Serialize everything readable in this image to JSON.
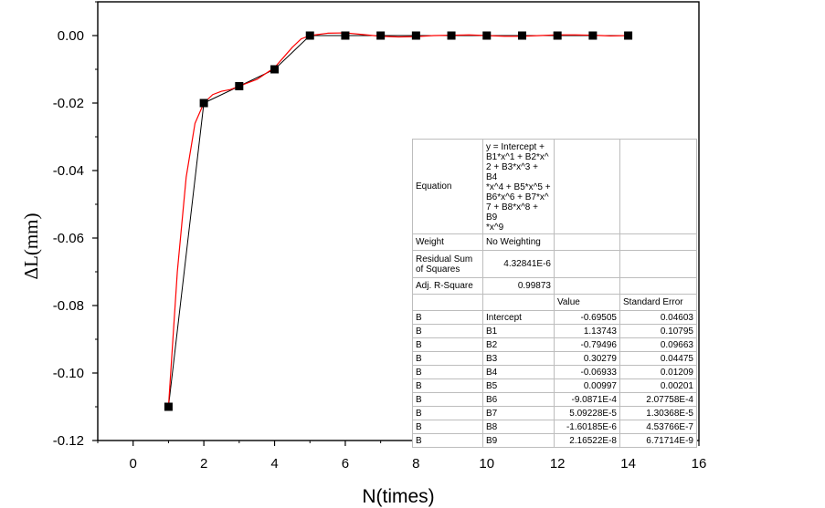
{
  "chart_data": {
    "type": "line",
    "title": "",
    "xlabel": "N(times)",
    "ylabel": "ΔL(mm)",
    "xlim": [
      -1,
      16
    ],
    "ylim": [
      -0.12,
      0.01
    ],
    "x_ticks": [
      0,
      2,
      4,
      6,
      8,
      10,
      12,
      14,
      16
    ],
    "y_ticks": [
      0.0,
      -0.02,
      -0.04,
      -0.06,
      -0.08,
      -0.1,
      -0.12
    ],
    "x_tick_labels": [
      "0",
      "2",
      "4",
      "6",
      "8",
      "10",
      "12",
      "14",
      "16"
    ],
    "y_tick_labels": [
      "0.00",
      "-0.02",
      "-0.04",
      "-0.06",
      "-0.08",
      "-0.10",
      "-0.12"
    ],
    "series": [
      {
        "marker": "square",
        "color": "#000000",
        "x": [
          1,
          2,
          3,
          4,
          5,
          6,
          7,
          8,
          9,
          10,
          11,
          12,
          13,
          14
        ],
        "y": [
          -0.11,
          -0.02,
          -0.015,
          -0.01,
          0.0,
          0.0,
          0.0,
          0.0,
          0.0,
          0.0,
          0.0,
          0.0,
          0.0,
          0.0
        ]
      },
      {
        "color": "#ff0000",
        "x": [
          1.0,
          1.25,
          1.5,
          1.75,
          2.0,
          2.25,
          2.5,
          2.75,
          3.0,
          3.5,
          4.0,
          4.25,
          4.5,
          4.75,
          5.0,
          5.5,
          6.0,
          6.5,
          7.0,
          7.5,
          8.0,
          8.5,
          9.0,
          9.5,
          10.0,
          10.5,
          11.0,
          11.5,
          12.0,
          12.5,
          13.0,
          13.5,
          14.0
        ],
        "y": [
          -0.11,
          -0.07,
          -0.042,
          -0.026,
          -0.02,
          -0.0175,
          -0.0165,
          -0.016,
          -0.015,
          -0.013,
          -0.0095,
          -0.0065,
          -0.0035,
          -0.001,
          0.0,
          0.0007,
          0.0008,
          0.0003,
          -0.0002,
          -0.0004,
          -0.0003,
          0.0,
          0.0001,
          0.0002,
          0.0,
          -0.0002,
          -0.0002,
          0.0,
          0.0002,
          0.0002,
          0.0001,
          -0.0001,
          0.0
        ]
      }
    ],
    "fit_table": {
      "equation_label": "Equation",
      "equation_lines": [
        "y = Intercept +",
        "B1*x^1 + B2*x^",
        "2 + B3*x^3 + B4",
        "*x^4 + B5*x^5 +",
        " B6*x^6 + B7*x^",
        "7 + B8*x^8 + B9",
        "*x^9"
      ],
      "weight_label": "Weight",
      "weight_value": "No Weighting",
      "rss_label_lines": [
        "Residual Sum",
        "of Squares"
      ],
      "rss_value": "4.32841E-6",
      "adjr2_label": "Adj. R-Square",
      "adjr2_value": "0.99873",
      "value_header": "Value",
      "stderr_header": "Standard Error",
      "params": [
        {
          "group": "B",
          "name": "Intercept",
          "value": "-0.69505",
          "stderr": "0.04603"
        },
        {
          "group": "B",
          "name": "B1",
          "value": "1.13743",
          "stderr": "0.10795"
        },
        {
          "group": "B",
          "name": "B2",
          "value": "-0.79496",
          "stderr": "0.09663"
        },
        {
          "group": "B",
          "name": "B3",
          "value": "0.30279",
          "stderr": "0.04475"
        },
        {
          "group": "B",
          "name": "B4",
          "value": "-0.06933",
          "stderr": "0.01209"
        },
        {
          "group": "B",
          "name": "B5",
          "value": "0.00997",
          "stderr": "0.00201"
        },
        {
          "group": "B",
          "name": "B6",
          "value": "-9.0871E-4",
          "stderr": "2.07758E-4"
        },
        {
          "group": "B",
          "name": "B7",
          "value": "5.09228E-5",
          "stderr": "1.30368E-5"
        },
        {
          "group": "B",
          "name": "B8",
          "value": "-1.60185E-6",
          "stderr": "4.53766E-7"
        },
        {
          "group": "B",
          "name": "B9",
          "value": "2.16522E-8",
          "stderr": "6.71714E-9"
        }
      ]
    }
  }
}
